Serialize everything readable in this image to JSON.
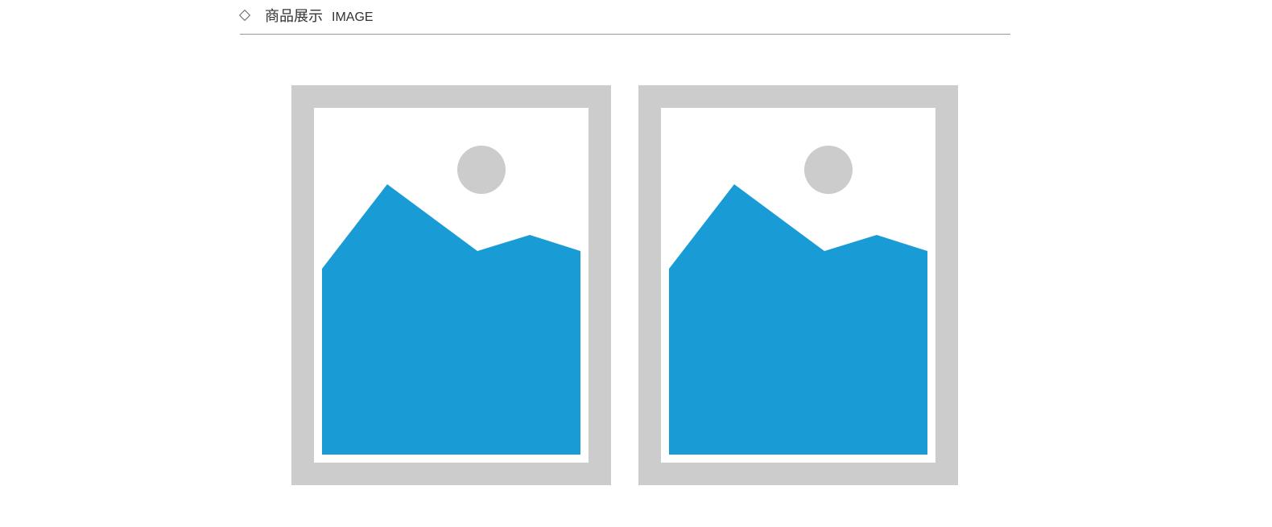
{
  "section": {
    "icon": "diamond-outline-icon",
    "title": "商品展示",
    "subtitle": "IMAGE"
  },
  "gallery": {
    "items": [
      {
        "icon": "image-placeholder-icon"
      },
      {
        "icon": "image-placeholder-icon"
      }
    ]
  },
  "colors": {
    "frame": "#cccccc",
    "mountain": "#199bd5",
    "sun": "#cccccc",
    "divider": "#999999",
    "text": "#333333"
  }
}
